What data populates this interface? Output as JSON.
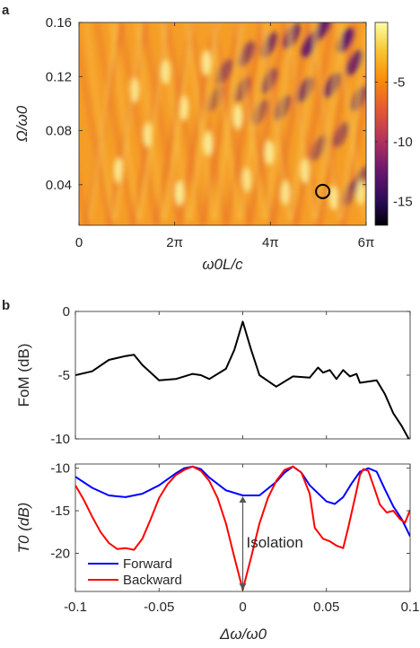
{
  "panel_labels": {
    "a": "a",
    "b": "b"
  },
  "chart_data": [
    {
      "type": "heatmap",
      "panel": "a",
      "xlabel": "ω0L/c",
      "ylabel": "Ω/ω0",
      "xlim": [
        0,
        18.85
      ],
      "ylim": [
        0.01,
        0.16
      ],
      "x_ticks": [
        0,
        6.283,
        12.566,
        18.85
      ],
      "x_tick_labels": [
        "0",
        "2π",
        "4π",
        "6π"
      ],
      "y_ticks": [
        0.04,
        0.08,
        0.12,
        0.16
      ],
      "y_tick_labels": [
        "0.04",
        "0.08",
        "0.12",
        "0.16"
      ],
      "colorbar": {
        "range": [
          -17,
          0
        ],
        "ticks": [
          -5,
          -10,
          -15
        ],
        "tick_labels": [
          "-5",
          "-10",
          "-15"
        ],
        "colormap": [
          "#000004",
          "#420a68",
          "#932667",
          "#dd513a",
          "#fca50a",
          "#f6d746",
          "#fcffa4"
        ]
      },
      "marker": {
        "shape": "circle",
        "x": 16.0,
        "y": 0.035
      },
      "grid": false
    },
    {
      "type": "line",
      "panel": "b-top",
      "xlabel": "",
      "ylabel": "FoM (dB)",
      "xlim": [
        -0.1,
        0.1
      ],
      "ylim": [
        -10,
        0
      ],
      "y_ticks": [
        0,
        -5,
        -10
      ],
      "y_tick_labels": [
        "0",
        "-5",
        "-10"
      ],
      "grid": false,
      "series": [
        {
          "color": "#000000",
          "x": [
            -0.1,
            -0.09,
            -0.08,
            -0.07,
            -0.065,
            -0.06,
            -0.05,
            -0.04,
            -0.03,
            -0.025,
            -0.02,
            -0.01,
            -0.005,
            0,
            0.005,
            0.01,
            0.02,
            0.03,
            0.04,
            0.045,
            0.048,
            0.052,
            0.056,
            0.06,
            0.064,
            0.068,
            0.07,
            0.075,
            0.08,
            0.085,
            0.09,
            0.095,
            0.1
          ],
          "values": [
            -5.0,
            -4.7,
            -3.8,
            -3.5,
            -3.4,
            -4.2,
            -5.4,
            -5.3,
            -4.9,
            -5.0,
            -5.3,
            -4.5,
            -3.0,
            -0.8,
            -3.0,
            -5.0,
            -5.9,
            -5.1,
            -5.2,
            -4.4,
            -4.8,
            -4.6,
            -5.3,
            -4.6,
            -5.1,
            -4.9,
            -5.6,
            -5.5,
            -5.4,
            -6.5,
            -8.0,
            -9.0,
            -10.2
          ]
        }
      ]
    },
    {
      "type": "line",
      "panel": "b-bottom",
      "xlabel": "Δω/ω0",
      "ylabel": "T0 (dB)",
      "xlim": [
        -0.1,
        0.1
      ],
      "ylim": [
        -24.5,
        -9.5
      ],
      "x_ticks": [
        -0.1,
        -0.05,
        0,
        0.05,
        0.1
      ],
      "x_tick_labels": [
        "-0.1",
        "-0.05",
        "0",
        "0.05",
        "0.1"
      ],
      "y_ticks": [
        -10,
        -15,
        -20
      ],
      "y_tick_labels": [
        "-10",
        "-15",
        "-20"
      ],
      "legend": "bottom-left",
      "grid": false,
      "annotation": {
        "text": "Isolation",
        "x": 0,
        "y_from": -13.3,
        "y_to": -24.3
      },
      "series": [
        {
          "name": "Forward",
          "color": "#0000ff",
          "x": [
            -0.1,
            -0.09,
            -0.08,
            -0.07,
            -0.06,
            -0.05,
            -0.04,
            -0.035,
            -0.03,
            -0.025,
            -0.02,
            -0.01,
            0,
            0.01,
            0.02,
            0.025,
            0.03,
            0.035,
            0.04,
            0.05,
            0.055,
            0.06,
            0.065,
            0.07,
            0.075,
            0.08,
            0.085,
            0.09,
            0.095,
            0.1
          ],
          "values": [
            -11.0,
            -12.3,
            -13.2,
            -13.4,
            -13.0,
            -12.0,
            -10.6,
            -10.0,
            -9.8,
            -10.1,
            -11.1,
            -12.6,
            -13.2,
            -13.2,
            -11.6,
            -10.5,
            -9.8,
            -10.5,
            -12.0,
            -13.9,
            -14.2,
            -13.4,
            -11.8,
            -10.4,
            -10.0,
            -10.4,
            -12.5,
            -14.5,
            -16.0,
            -18.0
          ]
        },
        {
          "name": "Backward",
          "color": "#ff0000",
          "x": [
            -0.1,
            -0.095,
            -0.09,
            -0.085,
            -0.08,
            -0.075,
            -0.07,
            -0.065,
            -0.06,
            -0.055,
            -0.05,
            -0.045,
            -0.04,
            -0.035,
            -0.03,
            -0.025,
            -0.02,
            -0.015,
            -0.01,
            -0.005,
            0,
            0.005,
            0.01,
            0.015,
            0.02,
            0.025,
            0.03,
            0.035,
            0.04,
            0.043,
            0.048,
            0.052,
            0.056,
            0.06,
            0.063,
            0.067,
            0.07,
            0.072,
            0.075,
            0.078,
            0.082,
            0.086,
            0.09,
            0.094,
            0.097,
            0.1
          ],
          "values": [
            -12.0,
            -13.7,
            -15.7,
            -17.5,
            -18.8,
            -19.5,
            -19.4,
            -19.6,
            -18.3,
            -16.0,
            -13.5,
            -11.9,
            -10.8,
            -10.2,
            -9.8,
            -10.3,
            -11.5,
            -13.5,
            -16.5,
            -20.5,
            -24.3,
            -20.5,
            -16.5,
            -13.5,
            -11.5,
            -10.2,
            -9.8,
            -10.5,
            -13.0,
            -17.0,
            -18.3,
            -18.6,
            -19.1,
            -19.4,
            -17.0,
            -13.5,
            -10.8,
            -10.1,
            -10.3,
            -12.0,
            -14.3,
            -15.2,
            -15.0,
            -16.0,
            -16.4,
            -14.9
          ]
        }
      ]
    }
  ]
}
